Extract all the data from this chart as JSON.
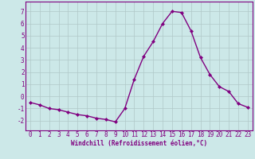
{
  "x": [
    0,
    1,
    2,
    3,
    4,
    5,
    6,
    7,
    8,
    9,
    10,
    11,
    12,
    13,
    14,
    15,
    16,
    17,
    18,
    19,
    20,
    21,
    22,
    23
  ],
  "y": [
    -0.5,
    -0.7,
    -1.0,
    -1.1,
    -1.3,
    -1.5,
    -1.6,
    -1.8,
    -1.9,
    -2.1,
    -1.0,
    1.4,
    3.3,
    4.5,
    6.0,
    7.0,
    6.9,
    5.4,
    3.2,
    1.8,
    0.8,
    0.4,
    -0.6,
    -0.9
  ],
  "line_color": "#800080",
  "marker": "D",
  "marker_size": 2.0,
  "line_width": 1.0,
  "bg_color": "#cce8e8",
  "grid_color": "#b0c8c8",
  "xlabel": "Windchill (Refroidissement éolien,°C)",
  "xlabel_color": "#800080",
  "xlabel_fontsize": 5.5,
  "tick_color": "#800080",
  "tick_fontsize": 5.5,
  "ylim": [
    -2.8,
    7.8
  ],
  "xlim": [
    -0.5,
    23.5
  ],
  "yticks": [
    -2,
    -1,
    0,
    1,
    2,
    3,
    4,
    5,
    6,
    7
  ],
  "xticks": [
    0,
    1,
    2,
    3,
    4,
    5,
    6,
    7,
    8,
    9,
    10,
    11,
    12,
    13,
    14,
    15,
    16,
    17,
    18,
    19,
    20,
    21,
    22,
    23
  ]
}
